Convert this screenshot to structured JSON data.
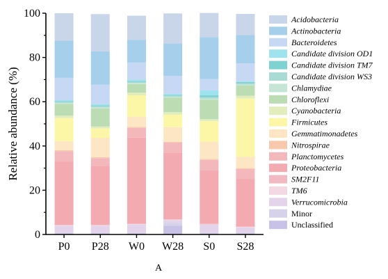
{
  "chart_data": {
    "type": "bar",
    "stacked": true,
    "panel_label": "A",
    "title": "",
    "xlabel": "",
    "ylabel": "Relative abundance (%)",
    "ylim": [
      0,
      100
    ],
    "yticks": [
      "0",
      "20",
      "40",
      "60",
      "80",
      "100"
    ],
    "categories": [
      "P0",
      "P28",
      "W0",
      "W28",
      "S0",
      "S28"
    ],
    "legend_position": "right",
    "series": [
      {
        "name": "Unclassified",
        "italic": false,
        "color": "#c7c2e6",
        "values": [
          0.3,
          0.3,
          0.3,
          4.0,
          0.3,
          0.3
        ]
      },
      {
        "name": "Minor",
        "italic": false,
        "color": "#d6d2ea",
        "values": [
          0.5,
          0.5,
          0.5,
          1.2,
          0.5,
          0.5
        ]
      },
      {
        "name": "Verrucomicrobia",
        "italic": true,
        "color": "#e3d4ec",
        "values": [
          3.2,
          3.2,
          3.7,
          1.3,
          3.6,
          2.4
        ]
      },
      {
        "name": "TM6",
        "italic": true,
        "color": "#f2d9e3",
        "values": [
          0.2,
          0.2,
          0.2,
          0.2,
          0.2,
          0.2
        ]
      },
      {
        "name": "SM2F11",
        "italic": true,
        "color": "#f1b9c2",
        "values": [
          0.2,
          0.2,
          0.2,
          0.2,
          0.2,
          0.2
        ]
      },
      {
        "name": "Proteobacteria",
        "italic": true,
        "color": "#f4aab1",
        "values": [
          28.6,
          26.6,
          38.9,
          30.1,
          24.1,
          21.4
        ]
      },
      {
        "name": "Planctomycetes",
        "italic": true,
        "color": "#f3b8bc",
        "values": [
          4.7,
          3.5,
          4.4,
          4.5,
          4.8,
          4.6
        ]
      },
      {
        "name": "Nitrospirae",
        "italic": true,
        "color": "#f8c8ad",
        "values": [
          0.4,
          0.4,
          0.4,
          0.4,
          0.4,
          0.4
        ]
      },
      {
        "name": "Gemmatimonadetes",
        "italic": true,
        "color": "#fde6c4",
        "values": [
          4.1,
          8.8,
          4.6,
          6.6,
          7.9,
          5.1
        ]
      },
      {
        "name": "Firmicutes",
        "italic": true,
        "color": "#fbf7a6",
        "values": [
          10.4,
          4.2,
          9.7,
          5.6,
          9.2,
          26.3
        ]
      },
      {
        "name": "Cyanobacteria",
        "italic": true,
        "color": "#e2edbd",
        "values": [
          1.1,
          0.9,
          1.2,
          1.2,
          0.9,
          1.3
        ]
      },
      {
        "name": "Chloroflexi",
        "italic": true,
        "color": "#bcdcb3",
        "values": [
          5.3,
          8.1,
          3.9,
          6.5,
          8.8,
          4.6
        ]
      },
      {
        "name": "Chlamydiae",
        "italic": true,
        "color": "#c5e6d6",
        "values": [
          0.5,
          0.6,
          0.5,
          0.5,
          0.6,
          0.5
        ]
      },
      {
        "name": "Candidate division WS3",
        "italic": true,
        "color": "#a9dbd4",
        "values": [
          0.4,
          0.5,
          0.4,
          0.4,
          0.6,
          0.6
        ]
      },
      {
        "name": "Candidate division TM7",
        "italic": true,
        "color": "#7fd2d2",
        "values": [
          0.3,
          0.4,
          0.4,
          0.4,
          0.8,
          0.5
        ]
      },
      {
        "name": "Candidate division OD1",
        "italic": true,
        "color": "#9fe3ee",
        "values": [
          0.5,
          0.6,
          0.7,
          0.5,
          2.2,
          0.4
        ]
      },
      {
        "name": "Bacteroidetes",
        "italic": true,
        "color": "#c6d8f3",
        "values": [
          10.1,
          8.7,
          7.7,
          8.1,
          5.1,
          8.0
        ]
      },
      {
        "name": "Actinobacteria",
        "italic": true,
        "color": "#a6cfec",
        "values": [
          16.8,
          15.1,
          10.3,
          14.6,
          19.0,
          12.8
        ]
      },
      {
        "name": "Acidobacteria",
        "italic": true,
        "color": "#c9d5e8",
        "values": [
          12.4,
          16.8,
          10.9,
          13.6,
          10.9,
          9.6
        ]
      }
    ],
    "legend_order": [
      "Acidobacteria",
      "Actinobacteria",
      "Bacteroidetes",
      "Candidate division OD1",
      "Candidate division TM7",
      "Candidate division WS3",
      "Chlamydiae",
      "Chloroflexi",
      "Cyanobacteria",
      "Firmicutes",
      "Gemmatimonadetes",
      "Nitrospirae",
      "Planctomycetes",
      "Proteobacteria",
      "SM2F11",
      "TM6",
      "Verrucomicrobia",
      "Minor",
      "Unclassified"
    ]
  }
}
